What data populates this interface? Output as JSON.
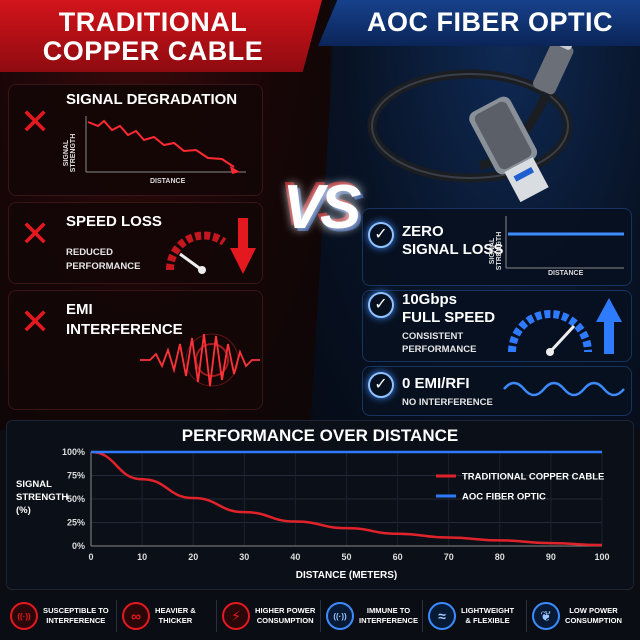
{
  "left": {
    "title_line1": "TRADITIONAL",
    "title_line2": "COPPER CABLE",
    "items": [
      {
        "heading": "SIGNAL DEGRADATION",
        "axis_y": "SIGNAL STRENGTH",
        "axis_x": "DISTANCE"
      },
      {
        "heading": "SPEED LOSS",
        "sub_line1": "REDUCED",
        "sub_line2": "PERFORMANCE"
      },
      {
        "heading_line1": "EMI",
        "heading_line2": "INTERFERENCE"
      }
    ]
  },
  "right": {
    "title": "AOC FIBER OPTIC",
    "items": [
      {
        "heading_line1": "ZERO",
        "heading_line2": "SIGNAL LOSS",
        "axis_y": "SIGNAL STRENGTH",
        "axis_x": "DISTANCE"
      },
      {
        "heading_line1": "10Gbps",
        "heading_line2": "FULL SPEED",
        "sub_line1": "CONSISTENT",
        "sub_line2": "PERFORMANCE"
      },
      {
        "heading": "0 EMI/RFI",
        "sub": "NO INTERFERENCE"
      }
    ]
  },
  "vs": "VS",
  "chart_data": {
    "type": "line",
    "title": "PERFORMANCE OVER DISTANCE",
    "xlabel": "DISTANCE (METERS)",
    "ylabel_line1": "SIGNAL",
    "ylabel_line2": "STRENGTH",
    "ylabel_line3": "(%)",
    "x": [
      0,
      10,
      20,
      30,
      40,
      50,
      60,
      70,
      80,
      90,
      100
    ],
    "xlim": [
      0,
      100
    ],
    "ylim": [
      0,
      100
    ],
    "x_ticks": [
      "0",
      "10",
      "20",
      "30",
      "40",
      "50",
      "60",
      "70",
      "80",
      "90",
      "100"
    ],
    "y_ticks": [
      "0%",
      "25%",
      "50%",
      "75%",
      "100%"
    ],
    "y_tick_values": [
      0,
      25,
      50,
      75,
      100
    ],
    "grid": true,
    "legend_position": "right",
    "series": [
      {
        "name": "TRADITIONAL COPPER CABLE",
        "color": "#e0232a",
        "values": [
          100,
          71,
          51,
          36,
          26,
          19,
          13,
          9,
          6,
          3,
          1
        ]
      },
      {
        "name": "AOC FIBER OPTIC",
        "color": "#2f7bff",
        "values": [
          100,
          100,
          100,
          100,
          100,
          100,
          100,
          100,
          100,
          100,
          100
        ]
      }
    ]
  },
  "footer": [
    {
      "icon": "antenna-icon",
      "line1": "SUSCEPTIBLE TO",
      "line2": "INTERFERENCE",
      "tone": "red"
    },
    {
      "icon": "knot-icon",
      "line1": "HEAVIER &",
      "line2": "THICKER",
      "tone": "red"
    },
    {
      "icon": "battery-icon",
      "line1": "HIGHER POWER",
      "line2": "CONSUMPTION",
      "tone": "red"
    },
    {
      "icon": "shield-antenna-icon",
      "line1": "IMMUNE TO",
      "line2": "INTERFERENCE",
      "tone": "blue"
    },
    {
      "icon": "feather-icon",
      "line1": "LIGHTWEIGHT",
      "line2": "& FLEXIBLE",
      "tone": "blue"
    },
    {
      "icon": "leaf-icon",
      "line1": "LOW POWER",
      "line2": "CONSUMPTION",
      "tone": "blue"
    }
  ],
  "colors": {
    "red": "#e4191f",
    "blue": "#2f7bff",
    "bg": "#0b0d12"
  }
}
